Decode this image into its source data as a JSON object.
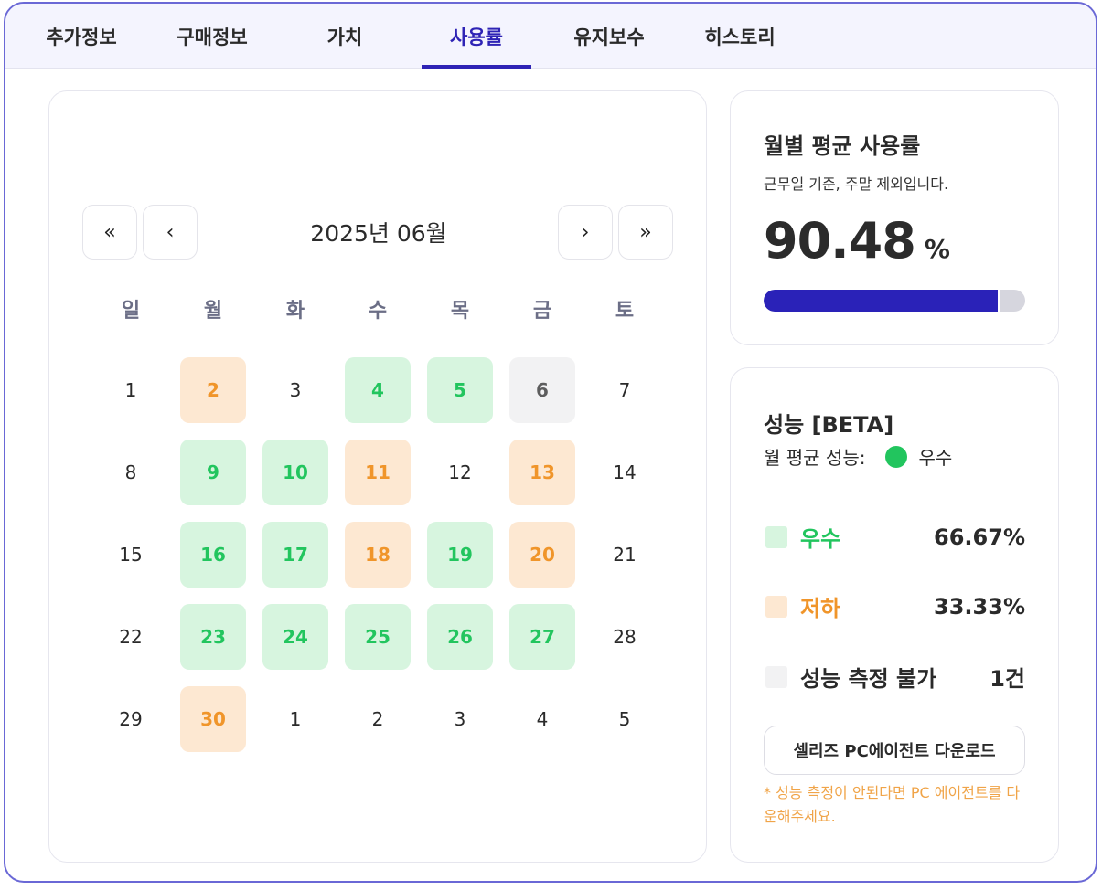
{
  "tabs": [
    {
      "label": "추가정보"
    },
    {
      "label": "구매정보"
    },
    {
      "label": "가치"
    },
    {
      "label": "사용률",
      "active": true
    },
    {
      "label": "유지보수"
    },
    {
      "label": "히스토리"
    }
  ],
  "calendar": {
    "month_title": "2025년 06월",
    "nav": {
      "first": "«",
      "prev": "‹",
      "next": "›",
      "last": "»"
    },
    "weekdays": [
      "일",
      "월",
      "화",
      "수",
      "목",
      "금",
      "토"
    ],
    "weeks": [
      [
        {
          "d": "1",
          "s": ""
        },
        {
          "d": "2",
          "s": "low"
        },
        {
          "d": "3",
          "s": ""
        },
        {
          "d": "4",
          "s": "good"
        },
        {
          "d": "5",
          "s": "good"
        },
        {
          "d": "6",
          "s": "na"
        },
        {
          "d": "7",
          "s": ""
        }
      ],
      [
        {
          "d": "8",
          "s": ""
        },
        {
          "d": "9",
          "s": "good"
        },
        {
          "d": "10",
          "s": "good"
        },
        {
          "d": "11",
          "s": "low"
        },
        {
          "d": "12",
          "s": ""
        },
        {
          "d": "13",
          "s": "low"
        },
        {
          "d": "14",
          "s": ""
        }
      ],
      [
        {
          "d": "15",
          "s": ""
        },
        {
          "d": "16",
          "s": "good"
        },
        {
          "d": "17",
          "s": "good"
        },
        {
          "d": "18",
          "s": "low"
        },
        {
          "d": "19",
          "s": "good"
        },
        {
          "d": "20",
          "s": "low"
        },
        {
          "d": "21",
          "s": ""
        }
      ],
      [
        {
          "d": "22",
          "s": ""
        },
        {
          "d": "23",
          "s": "good"
        },
        {
          "d": "24",
          "s": "good"
        },
        {
          "d": "25",
          "s": "good"
        },
        {
          "d": "26",
          "s": "good"
        },
        {
          "d": "27",
          "s": "good"
        },
        {
          "d": "28",
          "s": ""
        }
      ],
      [
        {
          "d": "29",
          "s": ""
        },
        {
          "d": "30",
          "s": "low"
        },
        {
          "d": "1",
          "s": ""
        },
        {
          "d": "2",
          "s": ""
        },
        {
          "d": "3",
          "s": ""
        },
        {
          "d": "4",
          "s": ""
        },
        {
          "d": "5",
          "s": ""
        }
      ]
    ]
  },
  "usage": {
    "title": "월별 평균 사용률",
    "subtitle": "근무일 기준, 주말 제외입니다.",
    "value": "90.48",
    "unit": "%",
    "progress_fraction": 0.9048
  },
  "performance": {
    "title": "성능 [BETA]",
    "avg_label": "월 평균 성능:",
    "avg_value": "우수",
    "legend": [
      {
        "label": "우수",
        "value": "66.67%",
        "color": "#22c55e",
        "swatch": "#d7f5df"
      },
      {
        "label": "저하",
        "value": "33.33%",
        "color": "#f0952a",
        "swatch": "#fde8d2"
      },
      {
        "label": "성능 측정 불가",
        "value": "1건",
        "color": "#2a2a2a",
        "swatch": "#f2f2f3"
      }
    ],
    "download_label": "셀리즈 PC에이전트 다운로드",
    "note": "* 성능 측정이 안된다면 PC 에이전트를 다운해주세요."
  },
  "colors": {
    "accent": "#2e23b5",
    "good": "#22c55e",
    "low": "#f0952a",
    "frame_border": "#6a68d6"
  }
}
